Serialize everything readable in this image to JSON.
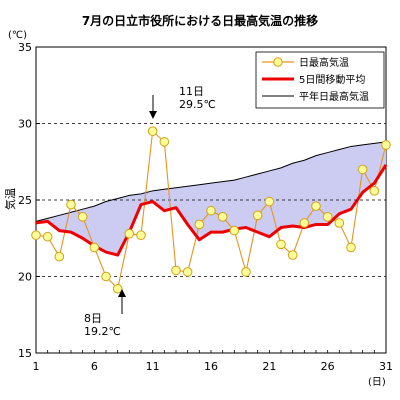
{
  "chart_data": {
    "type": "line",
    "title": "7月の日立市役所における日最高気温の推移",
    "ylabel": "気温",
    "yunit": "(℃)",
    "xunit": "(日)",
    "ylim": [
      15,
      35
    ],
    "xlim": [
      1,
      31
    ],
    "yticks": [
      15,
      20,
      25,
      30,
      35
    ],
    "xticks": [
      1,
      6,
      11,
      16,
      21,
      26,
      31
    ],
    "dashed_gridlines_at": [
      20,
      25,
      30
    ],
    "legend_position": "top-right",
    "x": [
      1,
      2,
      3,
      4,
      5,
      6,
      7,
      8,
      9,
      10,
      11,
      12,
      13,
      14,
      15,
      16,
      17,
      18,
      19,
      20,
      21,
      22,
      23,
      24,
      25,
      26,
      27,
      28,
      29,
      30,
      31
    ],
    "series": [
      {
        "name": "日最高気温",
        "color": "#e8931c",
        "marker_fill": "#ffff99",
        "marker_stroke": "#d4a017",
        "values": [
          22.7,
          22.6,
          21.3,
          24.7,
          23.9,
          21.9,
          20.0,
          19.2,
          22.8,
          22.7,
          29.5,
          28.8,
          20.4,
          20.3,
          23.4,
          24.3,
          23.9,
          23.0,
          20.3,
          24.0,
          24.9,
          22.1,
          21.4,
          23.5,
          24.6,
          23.9,
          23.5,
          21.9,
          27.0,
          25.6,
          28.6
        ]
      },
      {
        "name": "5日間移動平均",
        "color": "#ee0000",
        "values": [
          23.5,
          23.6,
          23.0,
          22.9,
          22.5,
          22.0,
          21.6,
          21.4,
          22.9,
          24.7,
          24.9,
          24.3,
          24.5,
          23.4,
          22.4,
          22.9,
          22.9,
          23.1,
          23.2,
          22.9,
          22.6,
          23.2,
          23.3,
          23.2,
          23.4,
          23.4,
          24.1,
          24.4,
          25.5,
          26.1,
          27.3
        ]
      },
      {
        "name": "平年日最高気温",
        "color": "#000000",
        "fill_below_to": "5日間移動平均",
        "fill_color": "#ccccf2",
        "values": [
          23.6,
          23.8,
          24.0,
          24.2,
          24.4,
          24.6,
          24.9,
          25.1,
          25.3,
          25.4,
          25.6,
          25.7,
          25.8,
          25.9,
          26.0,
          26.1,
          26.2,
          26.3,
          26.5,
          26.7,
          26.9,
          27.1,
          27.4,
          27.6,
          27.9,
          28.1,
          28.3,
          28.5,
          28.6,
          28.7,
          28.8
        ]
      }
    ],
    "annotations": [
      {
        "day_label": "11日",
        "value_label": "29.5℃",
        "x": 11,
        "y": 29.5,
        "arrow": "down"
      },
      {
        "day_label": "8日",
        "value_label": "19.2℃",
        "x": 8,
        "y": 19.2,
        "arrow": "up"
      }
    ]
  }
}
